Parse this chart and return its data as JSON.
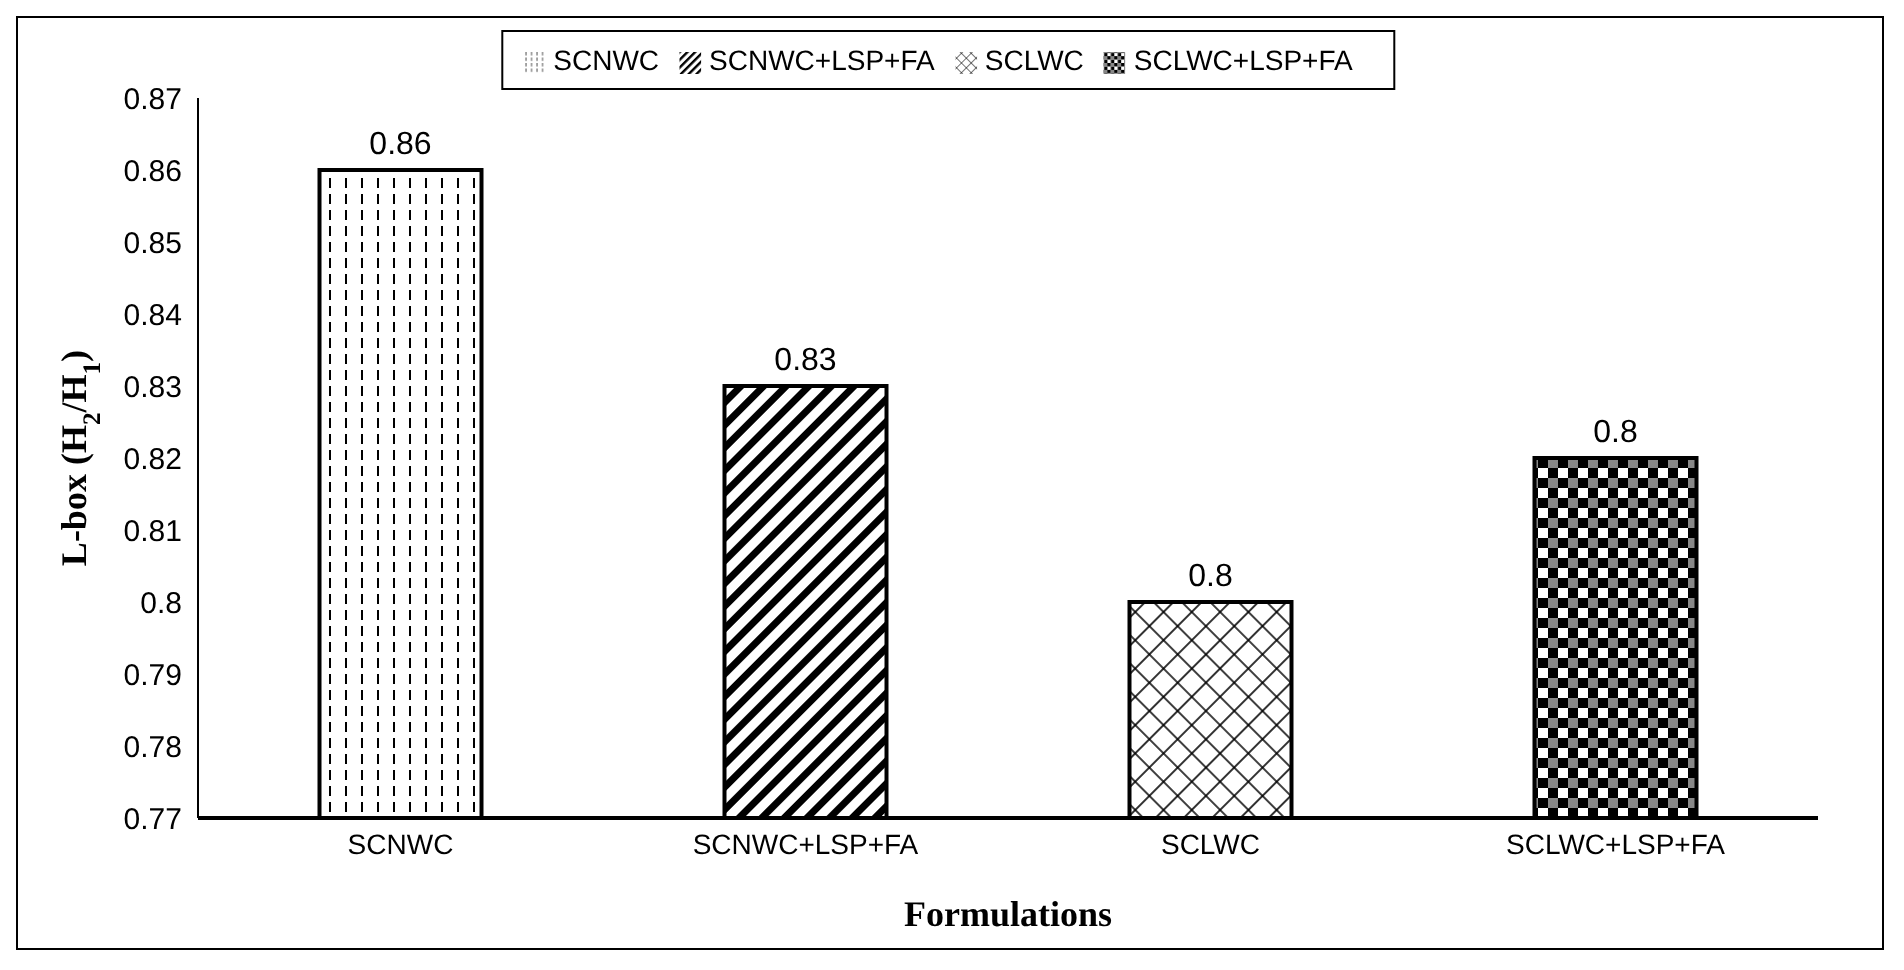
{
  "chart_data": {
    "type": "bar",
    "xlabel": "Formulations",
    "ylabel": "L-box (H$_{2}$/H$_{1}$)",
    "categories": [
      "SCNWC",
      "SCNWC+LSP+FA",
      "SCLWC",
      "SCLWC+LSP+FA"
    ],
    "stacked": true,
    "series": [
      {
        "name": "SCNWC",
        "color": "#000000",
        "values": [
          0.86,
          null,
          null,
          null
        ],
        "value_labels": [
          "0.86",
          null,
          null,
          null
        ]
      },
      {
        "name": "SCNWC+LSP+FA",
        "color": "#000000",
        "values": [
          null,
          0.83,
          null,
          null
        ],
        "value_labels": [
          null,
          "0.83",
          null,
          null
        ]
      },
      {
        "name": "SCLWC",
        "color": "#000000",
        "values": [
          null,
          null,
          0.8,
          null
        ],
        "value_labels": [
          null,
          null,
          "0.8",
          null
        ]
      },
      {
        "name": "SCLWC+LSP+FA",
        "color": "#000000",
        "values": [
          null,
          null,
          null,
          0.82
        ],
        "value_labels": [
          null,
          null,
          null,
          "0.8"
        ]
      }
    ],
    "ylim": [
      0.77,
      0.87
    ],
    "yticks": [
      0.77,
      0.78,
      0.79,
      0.8,
      0.81,
      0.82,
      0.83,
      0.84,
      0.85,
      0.86,
      0.87
    ],
    "grid": false,
    "legend": "top"
  }
}
